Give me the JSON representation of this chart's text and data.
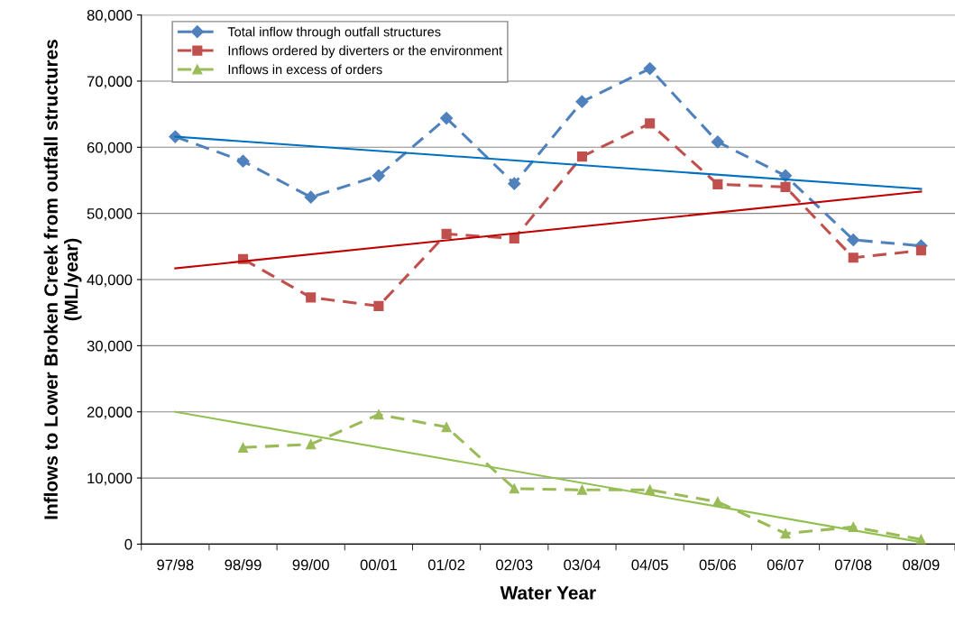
{
  "chart_data": {
    "type": "line",
    "xlabel": "Water Year",
    "ylabel": "Inflows to Lower Broken Creek from outfall structures (ML/year)",
    "categories": [
      "97/98",
      "98/99",
      "99/00",
      "00/01",
      "01/02",
      "02/03",
      "03/04",
      "04/05",
      "05/06",
      "06/07",
      "07/08",
      "08/09"
    ],
    "ylim": [
      0,
      80000
    ],
    "yticks": [
      {
        "value": 0,
        "label": "0"
      },
      {
        "value": 10000,
        "label": "10,000"
      },
      {
        "value": 20000,
        "label": "20,000"
      },
      {
        "value": 30000,
        "label": "30,000"
      },
      {
        "value": 40000,
        "label": "40,000"
      },
      {
        "value": 50000,
        "label": "50,000"
      },
      {
        "value": 60000,
        "label": "60,000"
      },
      {
        "value": 70000,
        "label": "70,000"
      },
      {
        "value": 80000,
        "label": "80,000"
      }
    ],
    "grid": "y",
    "legend": "top left",
    "series": [
      {
        "name": "Total inflow through outfall structures",
        "color": "#4f81bd",
        "marker": "diamond",
        "line_style": "dashed",
        "values": [
          61600,
          57900,
          52450,
          55700,
          64400,
          54500,
          66900,
          71900,
          60800,
          55700,
          46000,
          45100
        ]
      },
      {
        "name": "Inflows ordered by diverters or the environment",
        "color": "#c0504d",
        "marker": "square",
        "line_style": "dashed",
        "values": [
          null,
          43100,
          37300,
          36000,
          46900,
          46200,
          58600,
          63600,
          54400,
          54000,
          43300,
          44400
        ]
      },
      {
        "name": "Inflows in excess of orders",
        "color": "#9bbb59",
        "marker": "triangle",
        "line_style": "dashed",
        "values": [
          null,
          14600,
          15100,
          19600,
          17700,
          8400,
          8200,
          8200,
          6400,
          1600,
          2600,
          700
        ]
      },
      {
        "type": "line",
        "color": "#0070c0",
        "marker": "none",
        "line_style": "solid",
        "x": [
          "97/98",
          "08/09"
        ],
        "values": [
          61600,
          53700
        ]
      },
      {
        "type": "line",
        "color": "#c00000",
        "marker": "none",
        "line_style": "solid",
        "x": [
          "97/98",
          "08/09"
        ],
        "values": [
          41700,
          53300
        ]
      },
      {
        "type": "line",
        "color": "#92c050",
        "marker": "none",
        "line_style": "solid",
        "x": [
          "97/98",
          "08/09"
        ],
        "values": [
          20000,
          300
        ]
      }
    ]
  }
}
